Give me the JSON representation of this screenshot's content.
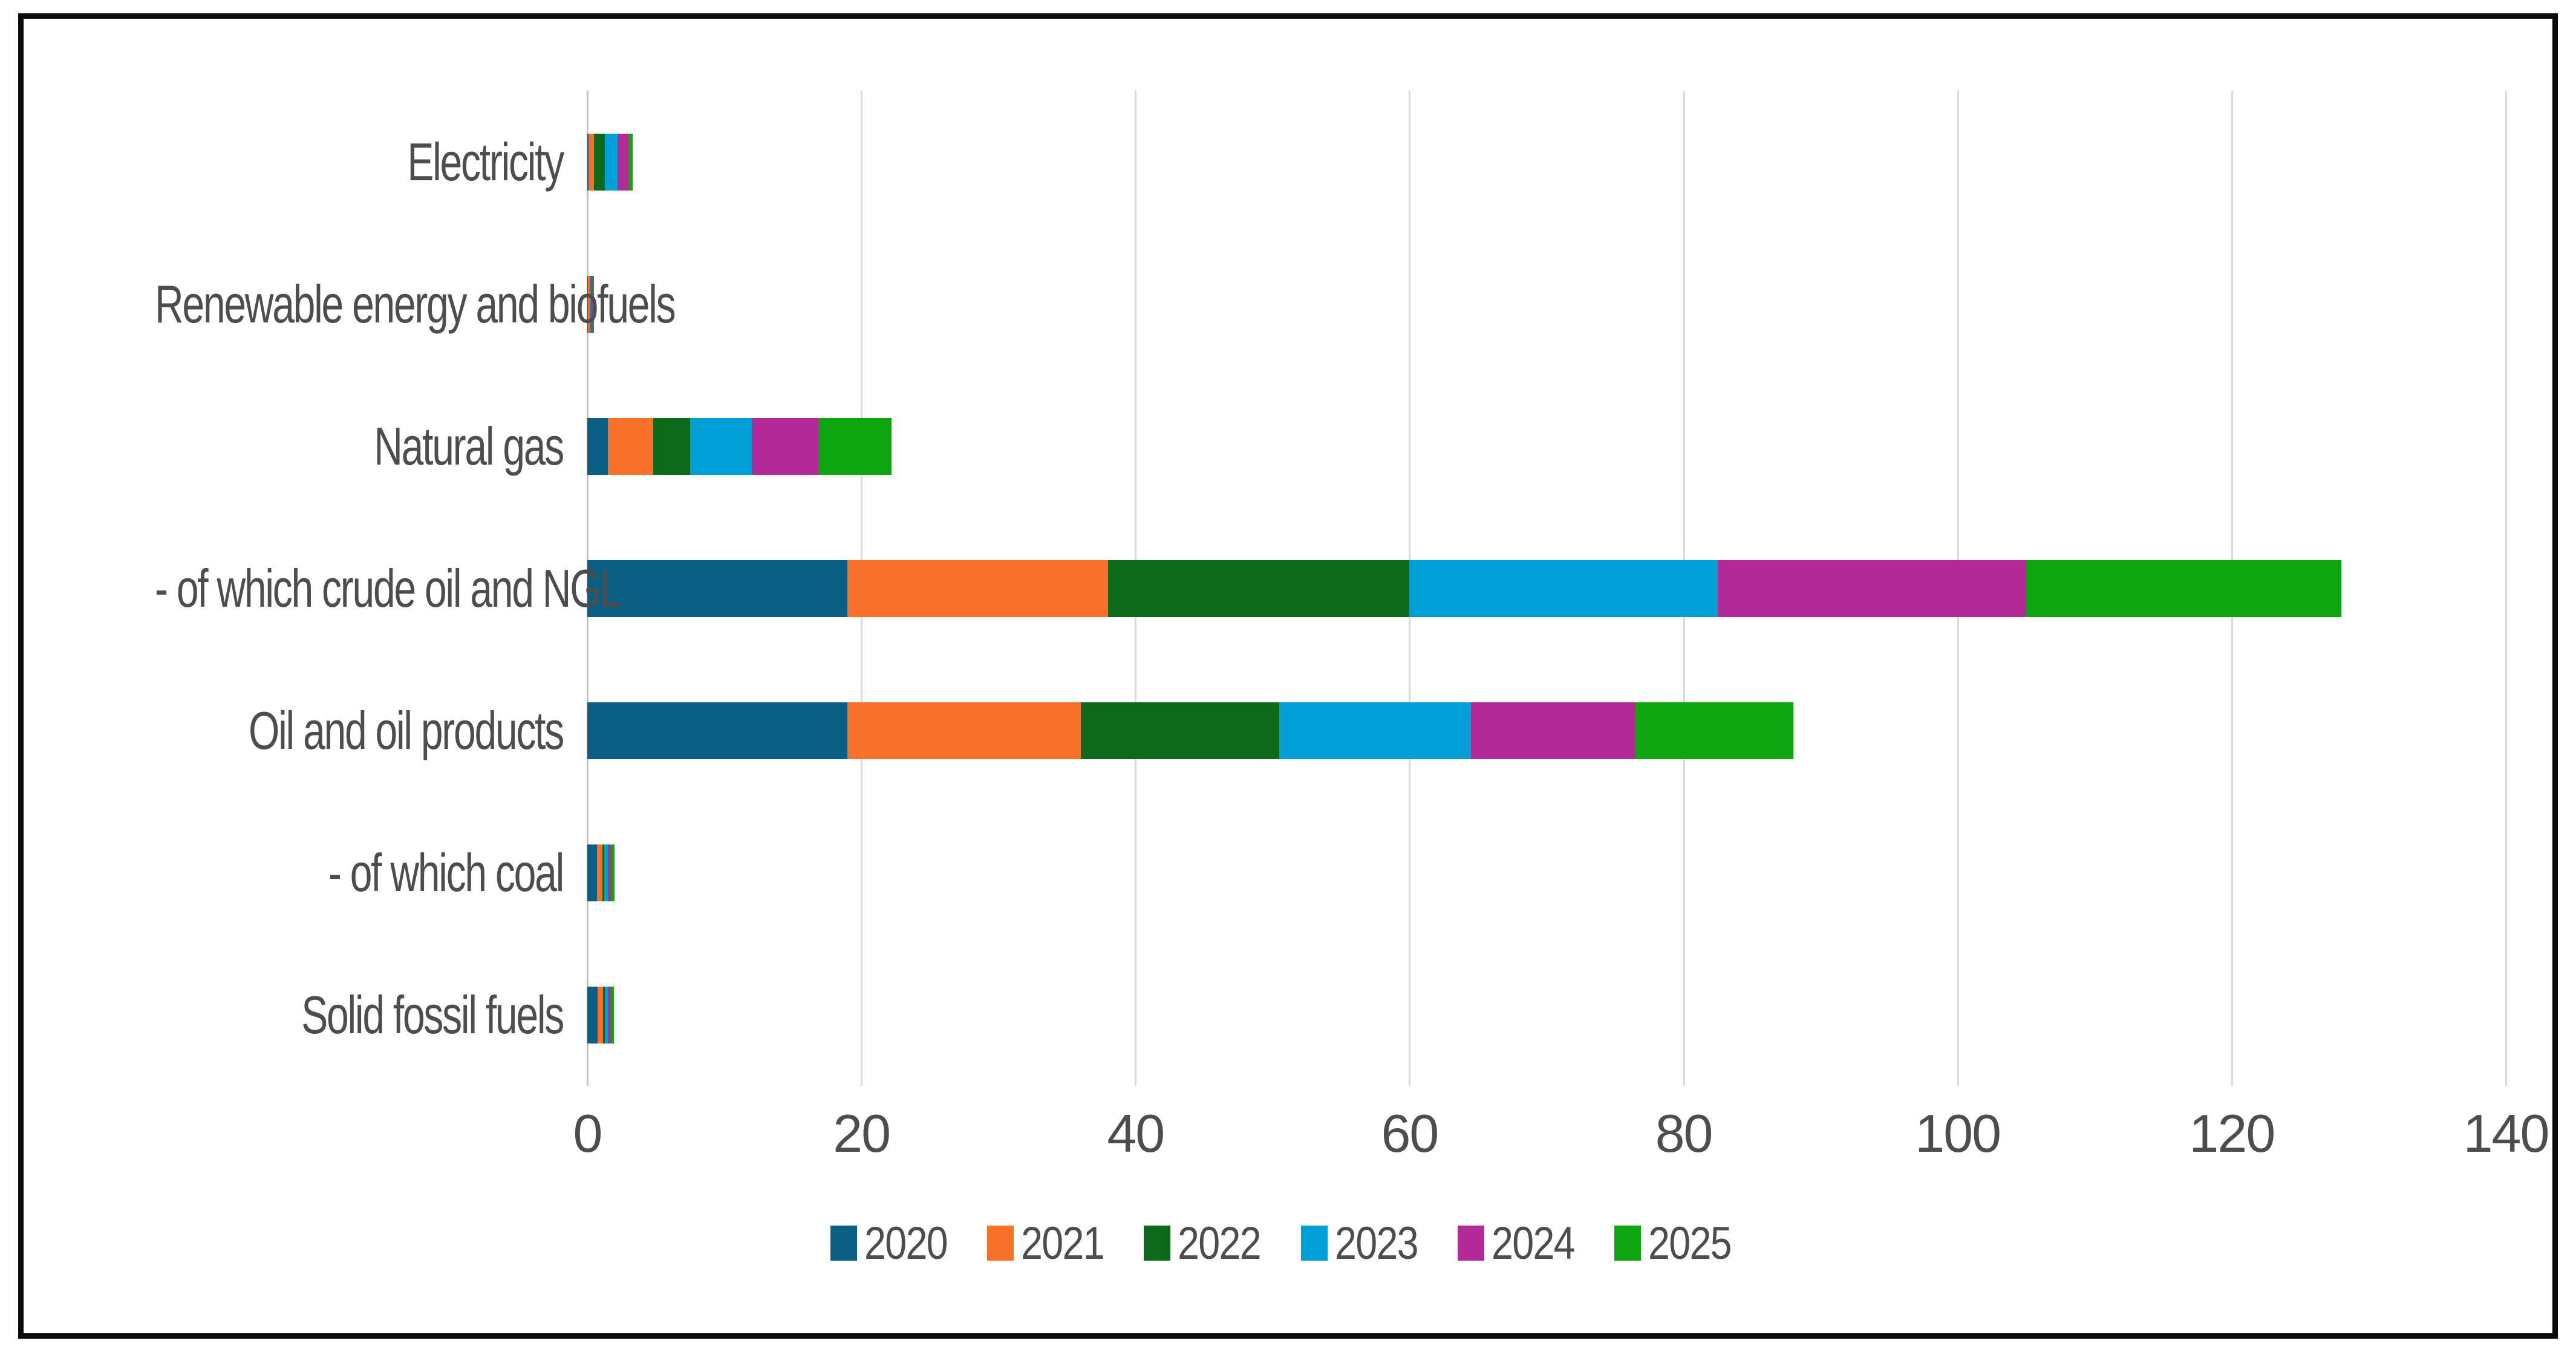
{
  "chart_data": {
    "type": "bar",
    "orientation": "horizontal",
    "stacked": true,
    "title": "",
    "xlabel": "",
    "ylabel": "",
    "grid": true,
    "legend_position": "bottom",
    "xlim": [
      0,
      140
    ],
    "x_ticks": [
      0,
      20,
      40,
      60,
      80,
      100,
      120,
      140
    ],
    "categories": [
      "Electricity",
      "Renewable energy and biofuels",
      "Natural gas",
      "- of which crude oil and NGL",
      "Oil and oil products",
      "- of which coal",
      "Solid fossil fuels"
    ],
    "series": [
      {
        "name": "2020",
        "color": "#0B5F84",
        "values": [
          0.1,
          0.05,
          1.5,
          19.0,
          19.0,
          0.7,
          0.75
        ]
      },
      {
        "name": "2021",
        "color": "#F97129",
        "values": [
          0.4,
          0.12,
          3.3,
          19.0,
          17.0,
          0.4,
          0.4
        ]
      },
      {
        "name": "2022",
        "color": "#0B6B1B",
        "values": [
          0.8,
          0.05,
          2.7,
          22.0,
          14.5,
          0.15,
          0.15
        ]
      },
      {
        "name": "2023",
        "color": "#009FD8",
        "values": [
          0.9,
          0.05,
          4.5,
          22.5,
          14.0,
          0.25,
          0.2
        ]
      },
      {
        "name": "2024",
        "color": "#B32A97",
        "values": [
          0.8,
          0.13,
          4.9,
          22.5,
          12.0,
          0.2,
          0.2
        ]
      },
      {
        "name": "2025",
        "color": "#0EA60E",
        "values": [
          0.3,
          0.1,
          5.3,
          23.0,
          11.5,
          0.3,
          0.25
        ]
      }
    ],
    "colors": {
      "grid": "#d9d9d9",
      "axis": "#c3c3c3",
      "text": "#4d4d4d",
      "frame": "#0b0b0b",
      "background": "#ffffff"
    }
  },
  "layout_note": ""
}
